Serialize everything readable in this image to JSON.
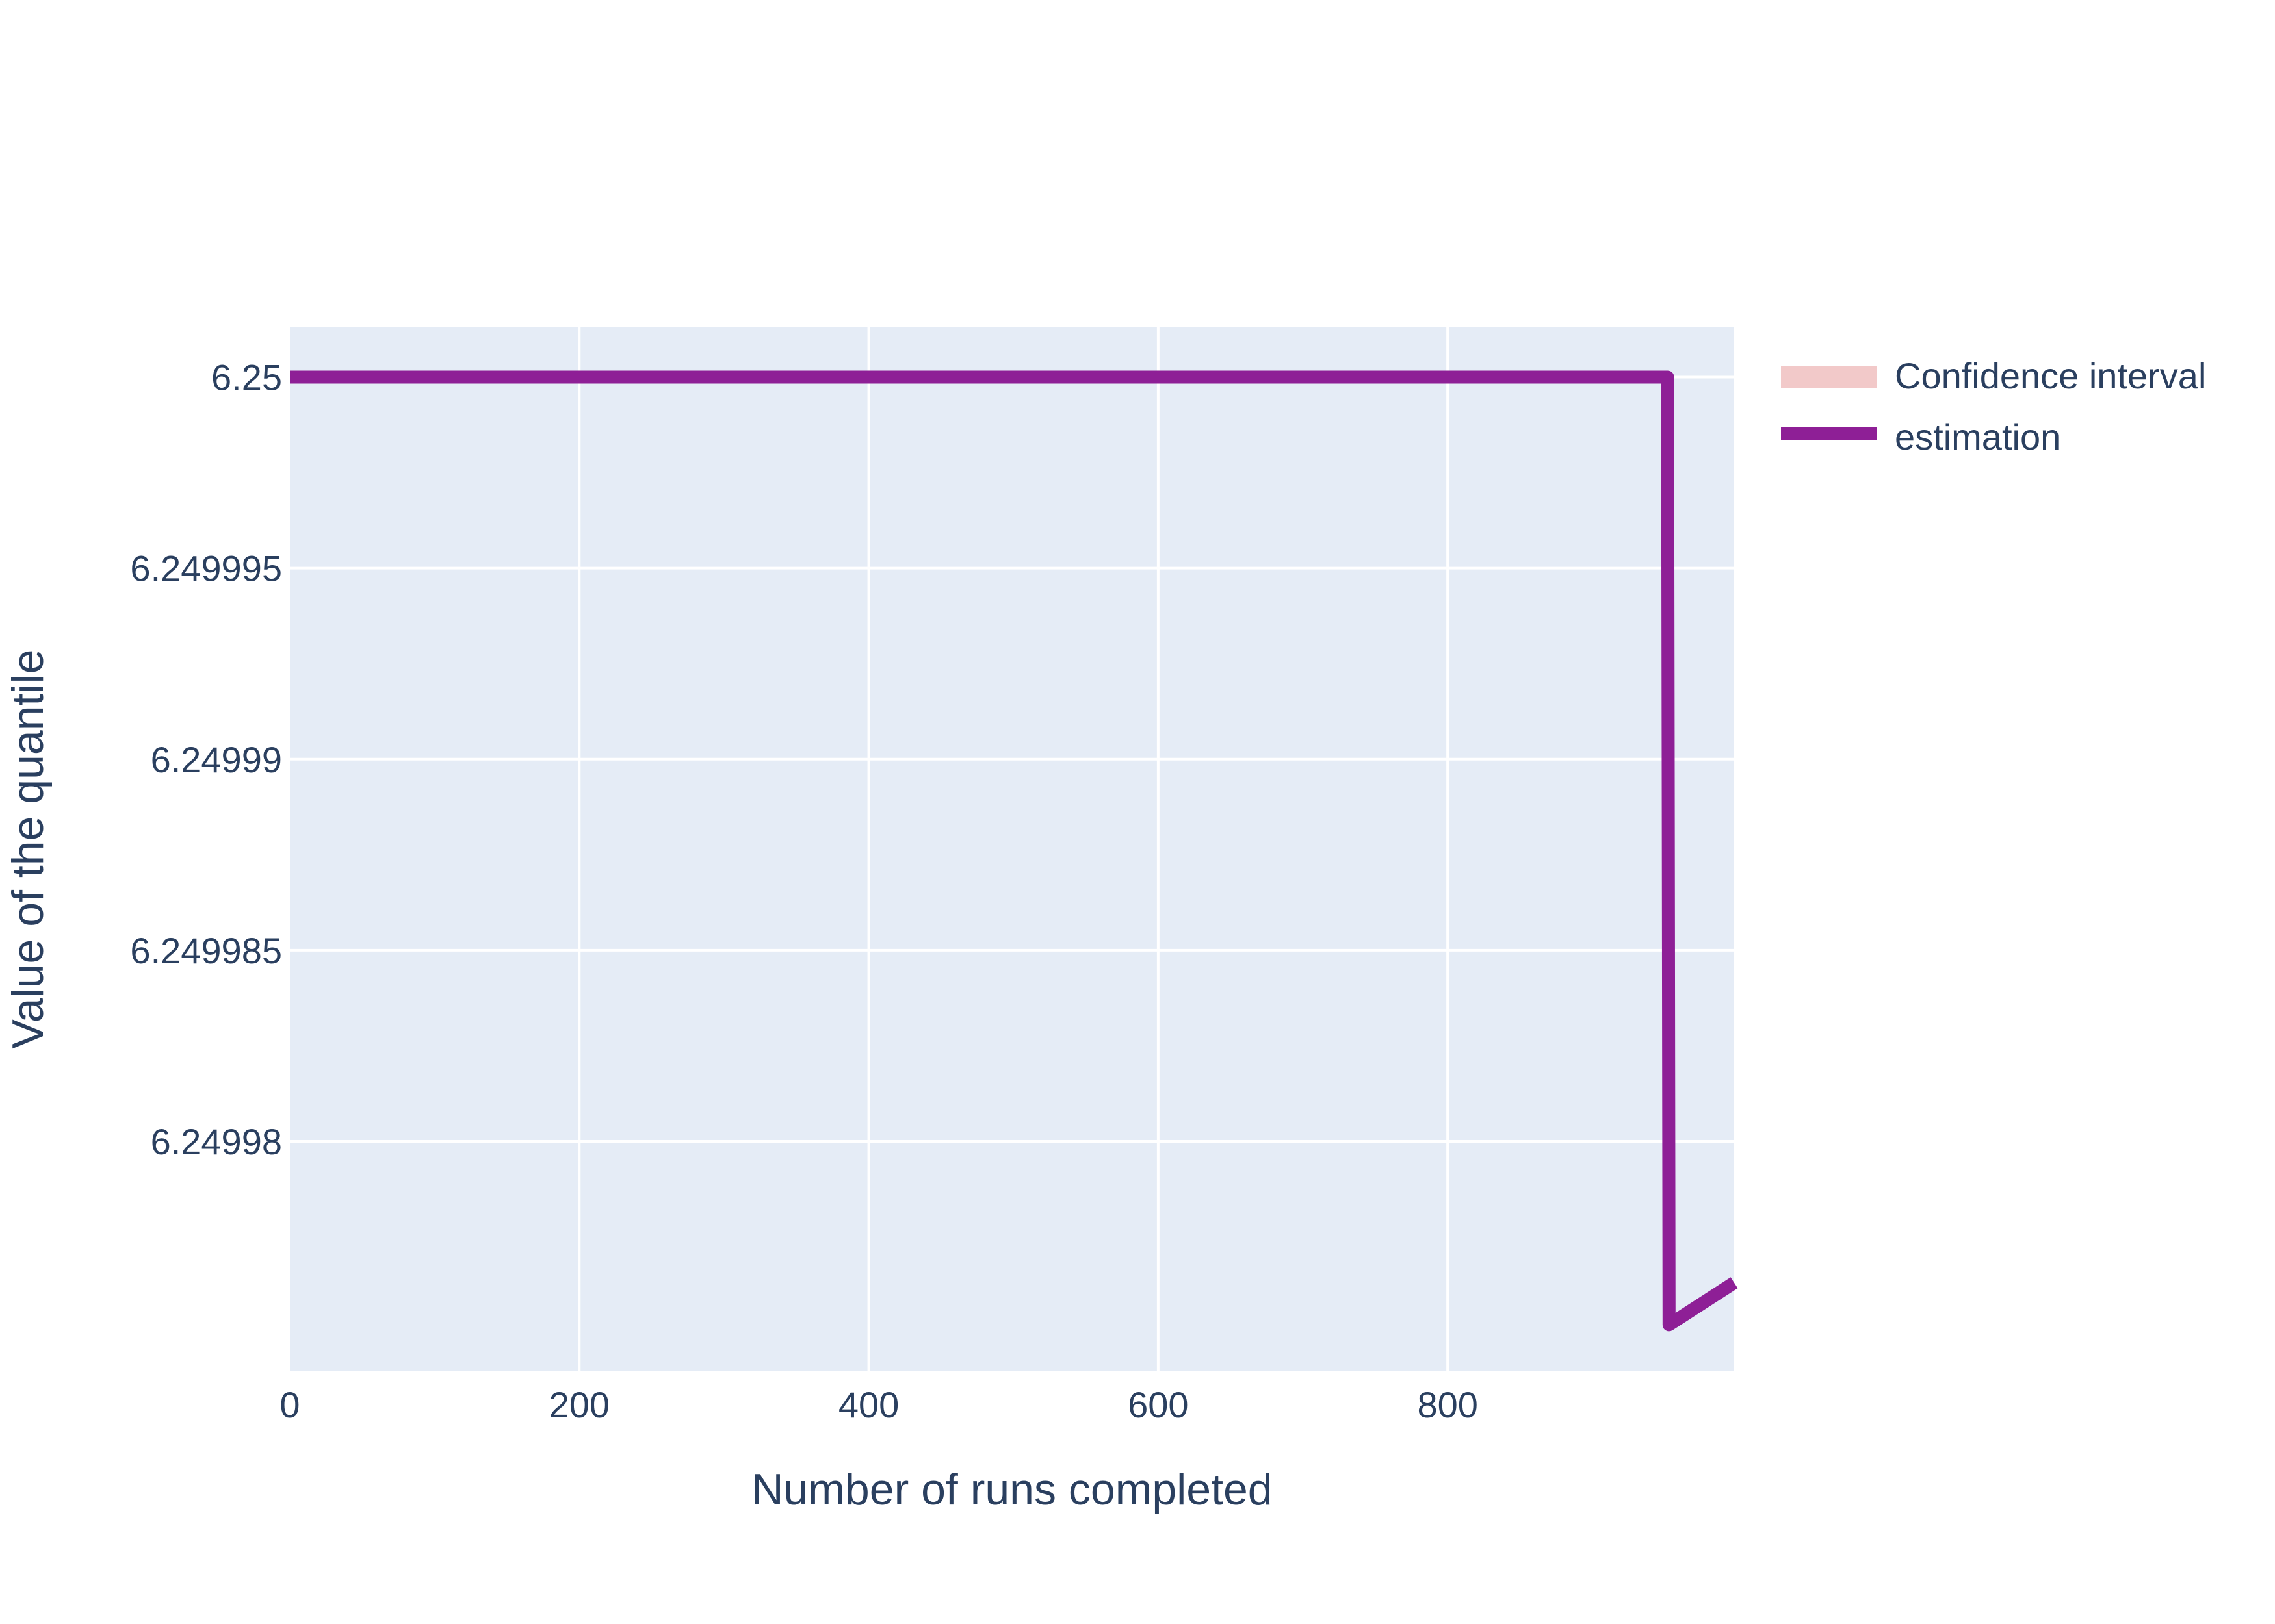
{
  "chart_data": {
    "type": "line",
    "title": "",
    "xlabel": "Number of runs completed",
    "ylabel": "Value of the quantile",
    "xlim": [
      0,
      998
    ],
    "ylim": [
      6.249974,
      6.2500013
    ],
    "x_ticks": [
      0,
      200,
      400,
      600,
      800
    ],
    "x_tick_labels": [
      "0",
      "200",
      "400",
      "600",
      "800"
    ],
    "y_ticks": [
      6.25,
      6.249995,
      6.24999,
      6.249985,
      6.24998
    ],
    "y_tick_labels": [
      "6.25",
      "6.249995",
      "6.24999",
      "6.249985",
      "6.24998"
    ],
    "grid": true,
    "plot_bgcolor": "#e5ecf6",
    "legend_position": "top-right",
    "series": [
      {
        "name": "Confidence interval",
        "kind": "band",
        "color": "#f2c9c9",
        "x": [],
        "lower": [],
        "upper": []
      },
      {
        "name": "estimation",
        "kind": "line",
        "color": "#8e1f96",
        "x": [
          0,
          952,
          953,
          998
        ],
        "y": [
          6.25,
          6.25,
          6.2499752,
          6.2499763
        ]
      }
    ]
  }
}
